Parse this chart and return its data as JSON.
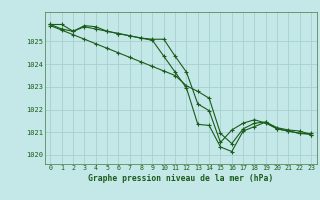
{
  "title": "Graphe pression niveau de la mer (hPa)",
  "background_color": "#c4e8e8",
  "grid_color": "#a8d0d0",
  "line_color1": "#1a5c1a",
  "line_color2": "#1a5c1a",
  "line_color3": "#1a5c1a",
  "xlim": [
    -0.5,
    23.5
  ],
  "ylim": [
    1019.6,
    1026.3
  ],
  "yticks": [
    1020,
    1021,
    1022,
    1023,
    1024,
    1025
  ],
  "xticks": [
    0,
    1,
    2,
    3,
    4,
    5,
    6,
    7,
    8,
    9,
    10,
    11,
    12,
    13,
    14,
    15,
    16,
    17,
    18,
    19,
    20,
    21,
    22,
    23
  ],
  "line1_x": [
    0,
    1,
    2,
    3,
    4,
    5,
    6,
    7,
    8,
    9,
    10,
    11,
    12,
    13,
    14,
    15,
    16,
    17,
    18,
    19,
    20,
    21,
    22,
    23
  ],
  "line1_y": [
    1025.75,
    1025.75,
    1025.45,
    1025.65,
    1025.55,
    1025.45,
    1025.35,
    1025.25,
    1025.15,
    1025.05,
    1024.35,
    1023.65,
    1022.95,
    1021.35,
    1021.3,
    1020.35,
    1020.15,
    1021.05,
    1021.25,
    1021.45,
    1021.15,
    1021.05,
    1020.95,
    1020.95
  ],
  "line2_x": [
    0,
    1,
    2,
    3,
    4,
    5,
    6,
    7,
    8,
    9,
    10,
    11,
    12,
    13,
    14,
    15,
    16,
    17,
    18,
    19,
    20,
    21,
    22,
    23
  ],
  "line2_y": [
    1025.75,
    1025.55,
    1025.45,
    1025.7,
    1025.65,
    1025.45,
    1025.35,
    1025.25,
    1025.15,
    1025.1,
    1025.1,
    1024.35,
    1023.65,
    1022.25,
    1021.95,
    1020.55,
    1021.1,
    1021.4,
    1021.55,
    1021.4,
    1021.15,
    1021.05,
    1020.95,
    1020.9
  ],
  "line3_x": [
    0,
    1,
    2,
    3,
    4,
    5,
    6,
    7,
    8,
    9,
    10,
    11,
    12,
    13,
    14,
    15,
    16,
    17,
    18,
    19,
    20,
    21,
    22,
    23
  ],
  "line3_y": [
    1025.7,
    1025.5,
    1025.3,
    1025.1,
    1024.9,
    1024.7,
    1024.5,
    1024.3,
    1024.1,
    1023.9,
    1023.7,
    1023.5,
    1023.05,
    1022.8,
    1022.5,
    1020.95,
    1020.5,
    1021.15,
    1021.4,
    1021.45,
    1021.2,
    1021.1,
    1021.05,
    1020.9
  ]
}
